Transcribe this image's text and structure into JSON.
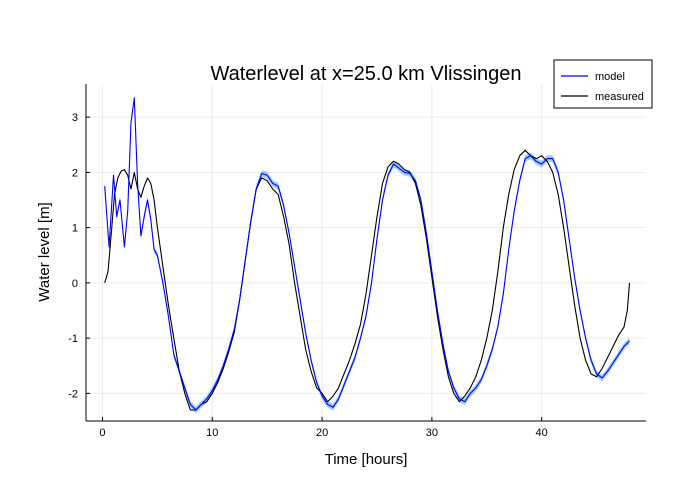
{
  "colors": {
    "model": "#0000ff",
    "measured": "#000000",
    "band": "#4da6ff"
  },
  "chart_data": {
    "type": "line",
    "title": "Waterlevel at x=25.0 km Vlissingen",
    "xlabel": "Time [hours]",
    "ylabel": "Water level [m]",
    "xlim": [
      -1.5,
      49.5
    ],
    "ylim": [
      -2.5,
      3.6
    ],
    "xticks": [
      0,
      10,
      20,
      30,
      40
    ],
    "yticks": [
      -2,
      -1,
      0,
      1,
      2,
      3
    ],
    "xtick_labels": [
      "0",
      "10",
      "20",
      "30",
      "40"
    ],
    "ytick_labels": [
      "-2",
      "-1",
      "0",
      "1",
      "2",
      "3"
    ],
    "grid": true,
    "legend_position": "top-right",
    "series": [
      {
        "name": "model",
        "color": "#0000ff",
        "band_width": 0.06,
        "x": [
          0.2,
          0.6,
          1.0,
          1.3,
          1.6,
          2.0,
          2.3,
          2.6,
          2.9,
          3.2,
          3.5,
          3.8,
          4.1,
          4.4,
          4.7,
          5.0,
          5.5,
          6.0,
          6.5,
          7.0,
          7.5,
          8.0,
          8.5,
          9.0,
          9.5,
          10.0,
          10.5,
          11.0,
          11.5,
          12.0,
          12.5,
          13.0,
          13.5,
          14.0,
          14.5,
          15.0,
          15.5,
          16.0,
          16.5,
          17.0,
          17.5,
          18.0,
          18.5,
          19.0,
          19.5,
          20.0,
          20.5,
          21.0,
          21.5,
          22.0,
          22.5,
          23.0,
          23.5,
          24.0,
          24.5,
          25.0,
          25.5,
          26.0,
          26.5,
          27.0,
          27.5,
          28.0,
          28.5,
          29.0,
          29.5,
          30.0,
          30.5,
          31.0,
          31.5,
          32.0,
          32.5,
          33.0,
          33.5,
          34.0,
          34.5,
          35.0,
          35.5,
          36.0,
          36.5,
          37.0,
          37.5,
          38.0,
          38.5,
          39.0,
          39.5,
          40.0,
          40.5,
          41.0,
          41.5,
          42.0,
          42.5,
          43.0,
          43.5,
          44.0,
          44.5,
          45.0,
          45.5,
          46.0,
          46.5,
          47.0,
          47.5,
          48.0
        ],
        "y": [
          1.75,
          0.65,
          1.95,
          1.2,
          1.5,
          0.65,
          1.3,
          2.9,
          3.35,
          1.8,
          0.85,
          1.2,
          1.5,
          1.15,
          0.6,
          0.5,
          0.0,
          -0.6,
          -1.3,
          -1.6,
          -1.9,
          -2.2,
          -2.3,
          -2.2,
          -2.1,
          -1.95,
          -1.75,
          -1.5,
          -1.2,
          -0.85,
          -0.3,
          0.4,
          1.1,
          1.7,
          1.98,
          1.95,
          1.8,
          1.75,
          1.4,
          0.9,
          0.3,
          -0.3,
          -0.9,
          -1.4,
          -1.8,
          -2.05,
          -2.2,
          -2.25,
          -2.1,
          -1.85,
          -1.6,
          -1.35,
          -1.0,
          -0.6,
          0.0,
          0.8,
          1.5,
          1.95,
          2.15,
          2.08,
          2.0,
          1.98,
          1.85,
          1.5,
          0.9,
          0.2,
          -0.5,
          -1.1,
          -1.6,
          -1.9,
          -2.1,
          -2.15,
          -2.0,
          -1.9,
          -1.75,
          -1.5,
          -1.2,
          -0.8,
          -0.2,
          0.6,
          1.3,
          1.85,
          2.25,
          2.3,
          2.2,
          2.15,
          2.25,
          2.25,
          2.0,
          1.5,
          0.8,
          0.1,
          -0.5,
          -1.0,
          -1.4,
          -1.65,
          -1.72,
          -1.6,
          -1.45,
          -1.3,
          -1.15,
          -1.05
        ]
      },
      {
        "name": "measured",
        "color": "#000000",
        "x": [
          0.2,
          0.5,
          0.8,
          1.1,
          1.4,
          1.7,
          2.0,
          2.3,
          2.6,
          2.9,
          3.2,
          3.5,
          3.8,
          4.1,
          4.4,
          4.7,
          5.0,
          5.5,
          6.0,
          6.5,
          7.0,
          7.5,
          8.0,
          8.5,
          9.0,
          9.5,
          10.0,
          10.5,
          11.0,
          11.5,
          12.0,
          12.5,
          13.0,
          13.5,
          14.0,
          14.5,
          15.0,
          15.5,
          16.0,
          16.5,
          17.0,
          17.5,
          18.0,
          18.5,
          19.0,
          19.5,
          20.0,
          20.5,
          21.0,
          21.5,
          22.0,
          22.5,
          23.0,
          23.5,
          24.0,
          24.5,
          25.0,
          25.5,
          26.0,
          26.5,
          27.0,
          27.5,
          28.0,
          28.5,
          29.0,
          29.5,
          30.0,
          30.5,
          31.0,
          31.5,
          32.0,
          32.5,
          33.0,
          33.5,
          34.0,
          34.5,
          35.0,
          35.5,
          36.0,
          36.5,
          37.0,
          37.5,
          38.0,
          38.5,
          39.0,
          39.5,
          40.0,
          40.5,
          41.0,
          41.5,
          42.0,
          42.5,
          43.0,
          43.5,
          44.0,
          44.5,
          45.0,
          45.5,
          46.0,
          46.5,
          47.0,
          47.5,
          47.8,
          48.0
        ],
        "y": [
          0.0,
          0.2,
          0.9,
          1.6,
          1.9,
          2.02,
          2.05,
          1.95,
          1.7,
          2.0,
          1.7,
          1.55,
          1.75,
          1.9,
          1.8,
          1.5,
          1.0,
          0.3,
          -0.4,
          -1.0,
          -1.6,
          -2.0,
          -2.3,
          -2.3,
          -2.2,
          -2.15,
          -2.0,
          -1.8,
          -1.55,
          -1.25,
          -0.9,
          -0.3,
          0.4,
          1.1,
          1.7,
          1.9,
          1.85,
          1.7,
          1.6,
          1.2,
          0.7,
          0.0,
          -0.6,
          -1.2,
          -1.6,
          -1.9,
          -2.0,
          -2.15,
          -2.05,
          -1.9,
          -1.65,
          -1.4,
          -1.1,
          -0.75,
          -0.2,
          0.5,
          1.2,
          1.8,
          2.1,
          2.2,
          2.15,
          2.05,
          2.0,
          1.8,
          1.4,
          0.8,
          0.1,
          -0.6,
          -1.2,
          -1.7,
          -2.0,
          -2.15,
          -2.05,
          -1.9,
          -1.7,
          -1.4,
          -1.0,
          -0.5,
          0.2,
          1.0,
          1.6,
          2.05,
          2.3,
          2.4,
          2.3,
          2.25,
          2.3,
          2.2,
          2.0,
          1.6,
          1.0,
          0.3,
          -0.4,
          -1.0,
          -1.4,
          -1.65,
          -1.7,
          -1.55,
          -1.35,
          -1.15,
          -0.95,
          -0.8,
          -0.5,
          0.0
        ]
      }
    ]
  }
}
